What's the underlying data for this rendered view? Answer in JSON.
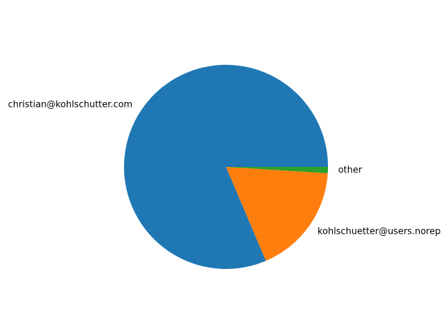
{
  "chart_data": {
    "type": "pie",
    "title": "",
    "slices": [
      {
        "label": "christian@kohlschutter.com",
        "value": 81.4,
        "color": "#1f77b4"
      },
      {
        "label": "kohlschuetter@users.noreply.github.com",
        "value": 17.6,
        "color": "#ff7f0e"
      },
      {
        "label": "other",
        "value": 1.0,
        "color": "#2ca02c"
      }
    ],
    "legend": "none"
  }
}
